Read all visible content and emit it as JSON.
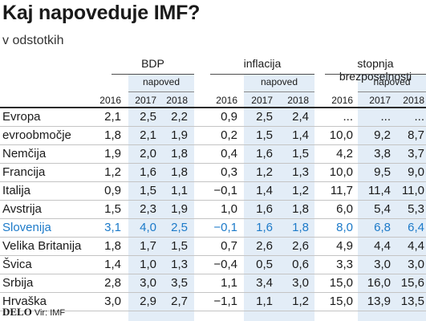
{
  "title": "Kaj napoveduje IMF?",
  "subtitle": "v odstotkih",
  "group_headers": [
    "BDP",
    "inflacija",
    "stopnja brezposelnosti"
  ],
  "forecast_label": "napoved",
  "years": [
    "2016",
    "2017",
    "2018"
  ],
  "highlight_color": "#1c7ac9",
  "forecast_shade_color": "#e3edf7",
  "highlight_row": "Slovenija",
  "footer": {
    "logo": "DELO",
    "source": "Vir: IMF"
  },
  "chart_data": {
    "type": "table",
    "title": "Kaj napoveduje IMF?",
    "subtitle": "v odstotkih",
    "columns": [
      {
        "group": "BDP",
        "year": "2016",
        "forecast": false
      },
      {
        "group": "BDP",
        "year": "2017",
        "forecast": true
      },
      {
        "group": "BDP",
        "year": "2018",
        "forecast": true
      },
      {
        "group": "inflacija",
        "year": "2016",
        "forecast": false
      },
      {
        "group": "inflacija",
        "year": "2017",
        "forecast": true
      },
      {
        "group": "inflacija",
        "year": "2018",
        "forecast": true
      },
      {
        "group": "stopnja brezposelnosti",
        "year": "2016",
        "forecast": false
      },
      {
        "group": "stopnja brezposelnosti",
        "year": "2017",
        "forecast": true
      },
      {
        "group": "stopnja brezposelnosti",
        "year": "2018",
        "forecast": true
      }
    ],
    "rows": [
      {
        "country": "Evropa",
        "values": [
          "2,1",
          "2,5",
          "2,2",
          "0,9",
          "2,5",
          "2,4",
          "...",
          "...",
          "..."
        ]
      },
      {
        "country": "evroobmočje",
        "values": [
          "1,8",
          "2,1",
          "1,9",
          "0,2",
          "1,5",
          "1,4",
          "10,0",
          "9,2",
          "8,7"
        ]
      },
      {
        "country": "Nemčija",
        "values": [
          "1,9",
          "2,0",
          "1,8",
          "0,4",
          "1,6",
          "1,5",
          "4,2",
          "3,8",
          "3,7"
        ]
      },
      {
        "country": "Francija",
        "values": [
          "1,2",
          "1,6",
          "1,8",
          "0,3",
          "1,2",
          "1,3",
          "10,0",
          "9,5",
          "9,0"
        ]
      },
      {
        "country": "Italija",
        "values": [
          "0,9",
          "1,5",
          "1,1",
          "−0,1",
          "1,4",
          "1,2",
          "11,7",
          "11,4",
          "11,0"
        ]
      },
      {
        "country": "Avstrija",
        "values": [
          "1,5",
          "2,3",
          "1,9",
          "1,0",
          "1,6",
          "1,8",
          "6,0",
          "5,4",
          "5,3"
        ]
      },
      {
        "country": "Slovenija",
        "values": [
          "3,1",
          "4,0",
          "2,5",
          "−0,1",
          "1,6",
          "1,8",
          "8,0",
          "6,8",
          "6,4"
        ]
      },
      {
        "country": "Velika Britanija",
        "values": [
          "1,8",
          "1,7",
          "1,5",
          "0,7",
          "2,6",
          "2,6",
          "4,9",
          "4,4",
          "4,4"
        ]
      },
      {
        "country": "Švica",
        "values": [
          "1,4",
          "1,0",
          "1,3",
          "−0,4",
          "0,5",
          "0,6",
          "3,3",
          "3,0",
          "3,0"
        ]
      },
      {
        "country": "Srbija",
        "values": [
          "2,8",
          "3,0",
          "3,5",
          "1,1",
          "3,4",
          "3,0",
          "15,0",
          "16,0",
          "15,6"
        ]
      },
      {
        "country": "Hrvaška",
        "values": [
          "3,0",
          "2,9",
          "2,7",
          "−1,1",
          "1,1",
          "1,2",
          "15,0",
          "13,9",
          "13,5"
        ]
      }
    ]
  }
}
